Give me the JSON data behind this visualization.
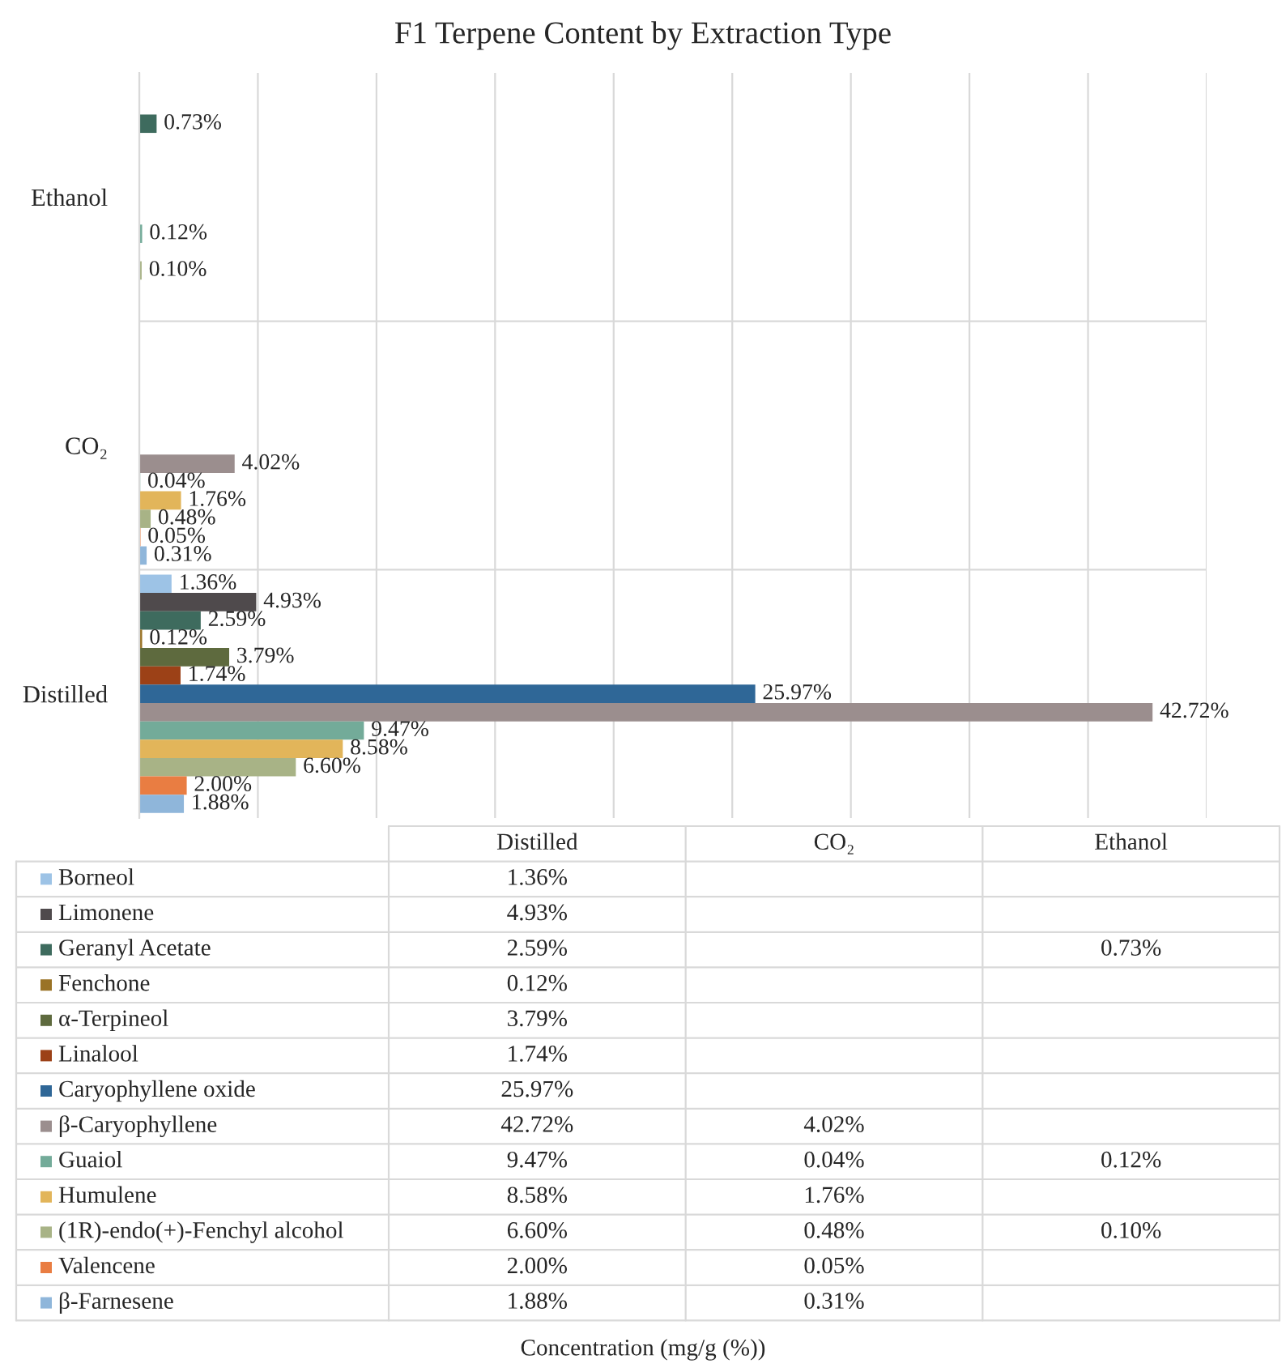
{
  "chart_data": {
    "type": "bar",
    "orientation": "horizontal",
    "title": "F1 Terpene Content by Extraction Type",
    "annotations": [
      "Concentration (mg/g (%))"
    ],
    "categories": [
      "Ethanol",
      "CO₂",
      "Distilled"
    ],
    "xlim": [
      0,
      45
    ],
    "xticks": [
      {
        "value": 0,
        "label": null
      },
      {
        "value": 5,
        "label": null
      },
      {
        "value": 10,
        "label": null
      },
      {
        "value": 15,
        "label": null
      },
      {
        "value": 20,
        "label": null
      },
      {
        "value": 25,
        "label": null
      },
      {
        "value": 30,
        "label": null
      },
      {
        "value": 35,
        "label": null
      },
      {
        "value": 40,
        "label": null
      },
      {
        "value": 45,
        "label": null
      }
    ],
    "grid": true,
    "legend": "bottom",
    "series": [
      {
        "name": "Borneol",
        "color": "#9dc3e6",
        "values": [
          null,
          null,
          1.36
        ],
        "value_labels": [
          null,
          null,
          "1.36%"
        ]
      },
      {
        "name": "Limonene",
        "color": "#4f4a4c",
        "values": [
          null,
          null,
          4.93
        ],
        "value_labels": [
          null,
          null,
          "4.93%"
        ]
      },
      {
        "name": "Geranyl Acetate",
        "color": "#3e6b5e",
        "values": [
          0.73,
          null,
          2.59
        ],
        "value_labels": [
          "0.73%",
          null,
          "2.59%"
        ]
      },
      {
        "name": "Fenchone",
        "color": "#9a7326",
        "values": [
          null,
          null,
          0.12
        ],
        "value_labels": [
          null,
          null,
          "0.12%"
        ]
      },
      {
        "name": "α-Terpineol",
        "color": "#5e6a3e",
        "values": [
          null,
          null,
          3.79
        ],
        "value_labels": [
          null,
          null,
          "3.79%"
        ]
      },
      {
        "name": "Linalool",
        "color": "#9c4117",
        "values": [
          null,
          null,
          1.74
        ],
        "value_labels": [
          null,
          null,
          "1.74%"
        ]
      },
      {
        "name": "Caryophyllene oxide",
        "color": "#2f6797",
        "values": [
          null,
          null,
          25.97
        ],
        "value_labels": [
          null,
          null,
          "25.97%"
        ]
      },
      {
        "name": "β-Caryophyllene",
        "color": "#9b8e8e",
        "values": [
          null,
          4.02,
          42.72
        ],
        "value_labels": [
          null,
          "4.02%",
          "42.72%"
        ]
      },
      {
        "name": "Guaiol",
        "color": "#73ab99",
        "values": [
          0.12,
          0.04,
          9.47
        ],
        "value_labels": [
          "0.12%",
          "0.04%",
          "9.47%"
        ]
      },
      {
        "name": "Humulene",
        "color": "#e2b55a",
        "values": [
          null,
          1.76,
          8.58
        ],
        "value_labels": [
          null,
          "1.76%",
          "8.58%"
        ]
      },
      {
        "name": "(1R)-endo(+)-Fenchyl alcohol",
        "color": "#a8b386",
        "values": [
          0.1,
          0.48,
          6.6
        ],
        "value_labels": [
          "0.10%",
          "0.48%",
          "6.60%"
        ]
      },
      {
        "name": "Valencene",
        "color": "#e97d42",
        "values": [
          null,
          0.05,
          2.0
        ],
        "value_labels": [
          null,
          "0.05%",
          "2.00%"
        ]
      },
      {
        "name": "β-Farnesene",
        "color": "#8fb6da",
        "values": [
          null,
          0.31,
          1.88
        ],
        "value_labels": [
          null,
          "0.31%",
          "1.88%"
        ]
      }
    ]
  }
}
